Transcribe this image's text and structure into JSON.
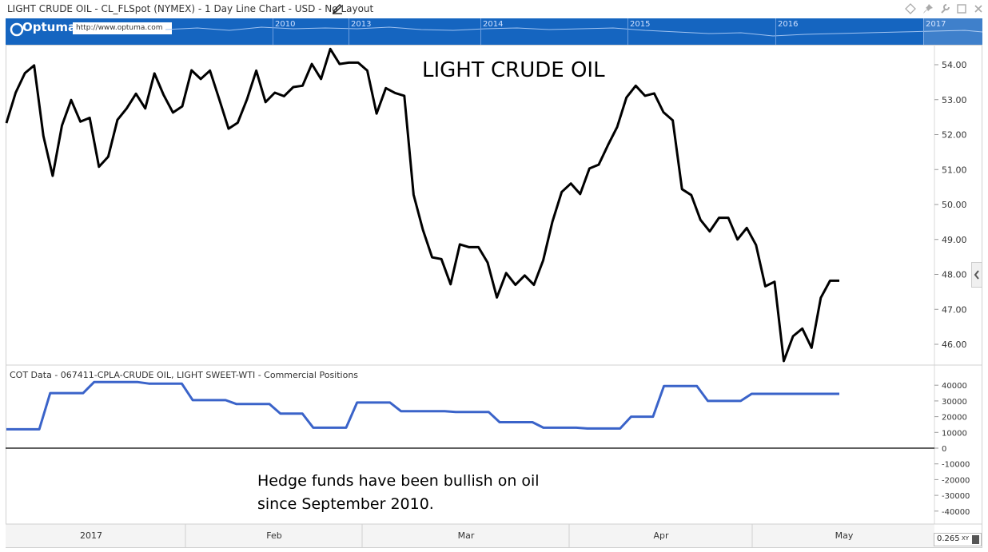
{
  "header": {
    "title": "LIGHT CRUDE OIL - CL_FLSpot (NYMEX) - 1 Day Line Chart - USD - No Layout"
  },
  "navigator": {
    "logo": "Optuma",
    "url": "http://www.optuma.com",
    "years": [
      "2010",
      "2013",
      "2014",
      "2015",
      "2016",
      "2017"
    ]
  },
  "chart_data": [
    {
      "type": "line",
      "title": "LIGHT CRUDE OIL",
      "series": [
        {
          "color": "#000000",
          "values": [
            52.33,
            53.2,
            53.76,
            53.98,
            51.96,
            50.82,
            52.26,
            52.99,
            52.37,
            52.48,
            51.08,
            51.37,
            52.42,
            52.75,
            53.17,
            52.75,
            53.75,
            53.13,
            52.63,
            52.81,
            53.84,
            53.59,
            53.83,
            53.01,
            52.17,
            52.34,
            53.01,
            53.83,
            52.93,
            53.2,
            53.1,
            53.36,
            53.4,
            54.02,
            53.59,
            54.45,
            54.02,
            54.06,
            54.06,
            53.83,
            52.6,
            53.33,
            53.19,
            53.11,
            50.28,
            49.28,
            48.49,
            48.44,
            47.72,
            48.86,
            48.78,
            48.78,
            48.34,
            47.34,
            48.04,
            47.7,
            47.97,
            47.7,
            48.4,
            49.51,
            50.36,
            50.6,
            50.3,
            51.03,
            51.14,
            51.7,
            52.22,
            53.06,
            53.4,
            53.11,
            53.18,
            52.64,
            52.41,
            50.44,
            50.27,
            49.56,
            49.23,
            49.62,
            49.62,
            49.0,
            49.33,
            48.84,
            47.66,
            47.79,
            45.52,
            46.23,
            46.45,
            45.9,
            47.33,
            47.82,
            47.82
          ]
        }
      ],
      "xaxis_labels": [
        "2017",
        "Feb",
        "Mar",
        "Apr",
        "May"
      ],
      "yaxis_ticks": [
        "54.00",
        "53.00",
        "52.00",
        "51.00",
        "50.00",
        "49.00",
        "48.00",
        "47.00",
        "46.00"
      ],
      "ylim": [
        45.2,
        54.6
      ]
    },
    {
      "type": "line",
      "title": "COT Data - 067411-CPLA-CRUDE OIL, LIGHT SWEET-WTI - Commercial Positions",
      "series": [
        {
          "color": "#3a63c9",
          "values": [
            12000,
            12000,
            12000,
            12000,
            35000,
            35000,
            35000,
            35000,
            42000,
            42000,
            42000,
            42000,
            42000,
            41000,
            41000,
            41000,
            41000,
            30500,
            30500,
            30500,
            30500,
            28000,
            28000,
            28000,
            28000,
            22000,
            22000,
            22000,
            13000,
            13000,
            13000,
            13000,
            29000,
            29000,
            29000,
            29000,
            23500,
            23500,
            23500,
            23500,
            23500,
            23000,
            23000,
            23000,
            23000,
            16500,
            16500,
            16500,
            16500,
            13000,
            13000,
            13000,
            13000,
            12500,
            12500,
            12500,
            12500,
            20000,
            20000,
            20000,
            39500,
            39500,
            39500,
            39500,
            30000,
            30000,
            30000,
            30000,
            34500,
            34500,
            34500,
            34500,
            34500,
            34500,
            34500,
            34500,
            34500
          ]
        }
      ],
      "yaxis_ticks": [
        "40000",
        "30000",
        "20000",
        "10000",
        "0",
        "-10000",
        "-20000",
        "-30000",
        "-40000"
      ],
      "ylim": [
        -50000,
        50000
      ]
    }
  ],
  "annotation": {
    "line1": "Hedge funds have been bullish on oil",
    "line2": "since September 2010."
  },
  "zoom": {
    "value": "0.265",
    "mode": "XY"
  }
}
